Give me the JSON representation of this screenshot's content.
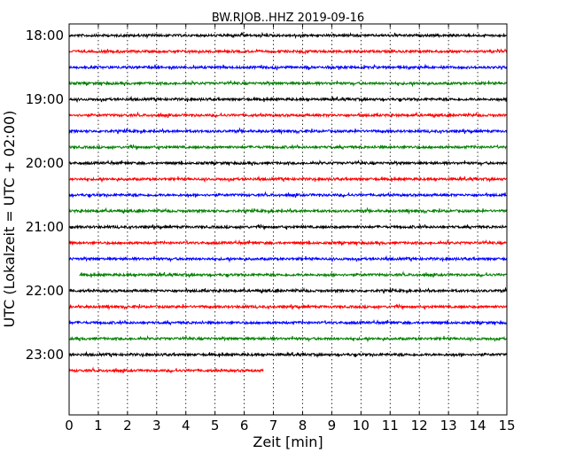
{
  "chart_data": {
    "type": "line",
    "title": "BW.RJOB..HHZ 2019-09-16",
    "xlabel": "Zeit  [min]",
    "ylabel": "UTC (Lokalzeit = UTC + 02:00)",
    "xlim": [
      0,
      15
    ],
    "x_ticks": [
      "0",
      "1",
      "2",
      "3",
      "4",
      "5",
      "6",
      "7",
      "8",
      "9",
      "10",
      "11",
      "12",
      "13",
      "14",
      "15"
    ],
    "y_tick_labels": [
      "18:00",
      "19:00",
      "20:00",
      "21:00",
      "22:00",
      "23:00"
    ],
    "grid": "vertical dotted",
    "series": [
      {
        "row_start": "18:00",
        "x_start": 0,
        "x_end": 15,
        "color": "#000000"
      },
      {
        "row_start": "18:15",
        "x_start": 0,
        "x_end": 15,
        "color": "#ff0000"
      },
      {
        "row_start": "18:30",
        "x_start": 0,
        "x_end": 15,
        "color": "#0000ff"
      },
      {
        "row_start": "18:45",
        "x_start": 0,
        "x_end": 15,
        "color": "#008000"
      },
      {
        "row_start": "19:00",
        "x_start": 0,
        "x_end": 15,
        "color": "#000000"
      },
      {
        "row_start": "19:15",
        "x_start": 0,
        "x_end": 15,
        "color": "#ff0000"
      },
      {
        "row_start": "19:30",
        "x_start": 0,
        "x_end": 15,
        "color": "#0000ff"
      },
      {
        "row_start": "19:45",
        "x_start": 0,
        "x_end": 15,
        "color": "#008000"
      },
      {
        "row_start": "20:00",
        "x_start": 0,
        "x_end": 15,
        "color": "#000000"
      },
      {
        "row_start": "20:15",
        "x_start": 0,
        "x_end": 15,
        "color": "#ff0000"
      },
      {
        "row_start": "20:30",
        "x_start": 0,
        "x_end": 15,
        "color": "#0000ff"
      },
      {
        "row_start": "20:45",
        "x_start": 0,
        "x_end": 15,
        "color": "#008000"
      },
      {
        "row_start": "21:00",
        "x_start": 0,
        "x_end": 15,
        "color": "#000000"
      },
      {
        "row_start": "21:15",
        "x_start": 0,
        "x_end": 15,
        "color": "#ff0000"
      },
      {
        "row_start": "21:30",
        "x_start": 0,
        "x_end": 15,
        "color": "#0000ff"
      },
      {
        "row_start": "21:45",
        "x_start": 0.35,
        "x_end": 15,
        "color": "#008000"
      },
      {
        "row_start": "22:00",
        "x_start": 0,
        "x_end": 15,
        "color": "#000000"
      },
      {
        "row_start": "22:15",
        "x_start": 0,
        "x_end": 15,
        "color": "#ff0000"
      },
      {
        "row_start": "22:30",
        "x_start": 0,
        "x_end": 15,
        "color": "#0000ff"
      },
      {
        "row_start": "22:45",
        "x_start": 0,
        "x_end": 15,
        "color": "#008000"
      },
      {
        "row_start": "23:00",
        "x_start": 0,
        "x_end": 15,
        "color": "#000000"
      },
      {
        "row_start": "23:15",
        "x_start": 0,
        "x_end": 6.65,
        "color": "#ff0000"
      }
    ]
  }
}
